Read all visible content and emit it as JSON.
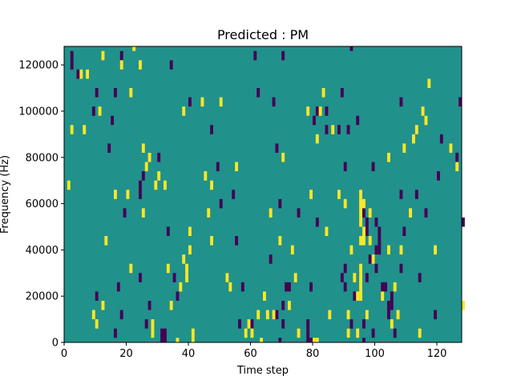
{
  "chart_data": {
    "type": "heatmap",
    "title": "Predicted : PM",
    "xlabel": "Time step",
    "ylabel": "Frequency (Hz)",
    "xlim": [
      0,
      128
    ],
    "ylim": [
      0,
      128000
    ],
    "x_ticks": [
      0,
      20,
      40,
      60,
      80,
      100,
      120
    ],
    "x_tick_labels": [
      "0",
      "20",
      "40",
      "60",
      "80",
      "100",
      "120"
    ],
    "y_ticks": [
      0,
      20000,
      40000,
      60000,
      80000,
      100000,
      120000
    ],
    "y_tick_labels": [
      "0",
      "20000",
      "40000",
      "60000",
      "80000",
      "100000",
      "120000"
    ],
    "grid": false,
    "colormap": "viridis",
    "colors": {
      "low": "#440154",
      "mid": "#21918c",
      "high": "#fde725"
    },
    "background_value": "mid",
    "bin_height_hz": 4000,
    "low_cells": [
      [
        2,
        120000
      ],
      [
        2,
        124000
      ],
      [
        4,
        116000
      ],
      [
        9,
        100000
      ],
      [
        10,
        108000
      ],
      [
        10,
        20000
      ],
      [
        14,
        84000
      ],
      [
        15,
        96000
      ],
      [
        16,
        4000
      ],
      [
        16,
        108000
      ],
      [
        17,
        24000
      ],
      [
        18,
        124000
      ],
      [
        18,
        12000
      ],
      [
        19,
        56000
      ],
      [
        24,
        28000
      ],
      [
        24,
        64000
      ],
      [
        24,
        68000
      ],
      [
        25,
        72000
      ],
      [
        26,
        8000
      ],
      [
        27,
        16000
      ],
      [
        30,
        80000
      ],
      [
        31,
        4000
      ],
      [
        31,
        0
      ],
      [
        32,
        4000
      ],
      [
        32,
        0
      ],
      [
        33,
        48000
      ],
      [
        34,
        120000
      ],
      [
        35,
        28000
      ],
      [
        36,
        20000
      ],
      [
        40,
        104000
      ],
      [
        47,
        92000
      ],
      [
        49,
        76000
      ],
      [
        50,
        60000
      ],
      [
        52,
        28000
      ],
      [
        54,
        64000
      ],
      [
        55,
        44000
      ],
      [
        56,
        8000
      ],
      [
        57,
        24000
      ],
      [
        60,
        8000
      ],
      [
        61,
        124000
      ],
      [
        62,
        108000
      ],
      [
        66,
        36000
      ],
      [
        67,
        104000
      ],
      [
        68,
        84000
      ],
      [
        68,
        12000
      ],
      [
        69,
        0
      ],
      [
        69,
        60000
      ],
      [
        70,
        124000
      ],
      [
        70,
        16000
      ],
      [
        70,
        8000
      ],
      [
        71,
        24000
      ],
      [
        72,
        24000
      ],
      [
        75,
        56000
      ],
      [
        78,
        8000
      ],
      [
        78,
        4000
      ],
      [
        78,
        0
      ],
      [
        79,
        0
      ],
      [
        79,
        24000
      ],
      [
        80,
        96000
      ],
      [
        81,
        100000
      ],
      [
        81,
        52000
      ],
      [
        84,
        100000
      ],
      [
        84,
        92000
      ],
      [
        88,
        92000
      ],
      [
        89,
        108000
      ],
      [
        89,
        28000
      ],
      [
        90,
        76000
      ],
      [
        90,
        32000
      ],
      [
        90,
        24000
      ],
      [
        91,
        92000
      ],
      [
        91,
        4000
      ],
      [
        92,
        8000
      ],
      [
        92,
        128000
      ],
      [
        93,
        20000
      ],
      [
        94,
        96000
      ],
      [
        96,
        8000
      ],
      [
        96,
        0
      ],
      [
        96,
        56000
      ],
      [
        97,
        52000
      ],
      [
        97,
        48000
      ],
      [
        97,
        28000
      ],
      [
        98,
        36000
      ],
      [
        99,
        4000
      ],
      [
        99,
        76000
      ],
      [
        100,
        40000
      ],
      [
        100,
        32000
      ],
      [
        100,
        52000
      ],
      [
        101,
        48000
      ],
      [
        101,
        44000
      ],
      [
        101,
        40000
      ],
      [
        102,
        24000
      ],
      [
        103,
        24000
      ],
      [
        104,
        12000
      ],
      [
        104,
        16000
      ],
      [
        105,
        20000
      ],
      [
        105,
        16000
      ],
      [
        106,
        4000
      ],
      [
        108,
        64000
      ],
      [
        108,
        104000
      ],
      [
        108,
        32000
      ],
      [
        109,
        48000
      ],
      [
        113,
        64000
      ],
      [
        114,
        28000
      ],
      [
        116,
        56000
      ],
      [
        119,
        12000
      ],
      [
        120,
        72000
      ],
      [
        121,
        88000
      ],
      [
        126,
        80000
      ],
      [
        127,
        104000
      ],
      [
        128,
        52000
      ]
    ],
    "high_cells": [
      [
        1,
        68000
      ],
      [
        2,
        92000
      ],
      [
        5,
        116000
      ],
      [
        6,
        92000
      ],
      [
        7,
        116000
      ],
      [
        9,
        12000
      ],
      [
        10,
        8000
      ],
      [
        11,
        100000
      ],
      [
        12,
        16000
      ],
      [
        12,
        124000
      ],
      [
        13,
        44000
      ],
      [
        16,
        64000
      ],
      [
        18,
        120000
      ],
      [
        20,
        64000
      ],
      [
        21,
        108000
      ],
      [
        21,
        32000
      ],
      [
        22,
        128000
      ],
      [
        24,
        120000
      ],
      [
        25,
        56000
      ],
      [
        25,
        84000
      ],
      [
        26,
        76000
      ],
      [
        27,
        80000
      ],
      [
        28,
        4000
      ],
      [
        28,
        8000
      ],
      [
        29,
        68000
      ],
      [
        30,
        72000
      ],
      [
        32,
        68000
      ],
      [
        33,
        32000
      ],
      [
        34,
        16000
      ],
      [
        36,
        0
      ],
      [
        37,
        24000
      ],
      [
        38,
        36000
      ],
      [
        38,
        100000
      ],
      [
        39,
        28000
      ],
      [
        39,
        32000
      ],
      [
        40,
        40000
      ],
      [
        40,
        48000
      ],
      [
        41,
        4000
      ],
      [
        41,
        0
      ],
      [
        44,
        104000
      ],
      [
        45,
        72000
      ],
      [
        46,
        56000
      ],
      [
        47,
        68000
      ],
      [
        47,
        44000
      ],
      [
        50,
        104000
      ],
      [
        52,
        28000
      ],
      [
        53,
        24000
      ],
      [
        55,
        76000
      ],
      [
        58,
        4000
      ],
      [
        59,
        8000
      ],
      [
        60,
        4000
      ],
      [
        62,
        12000
      ],
      [
        63,
        0
      ],
      [
        64,
        20000
      ],
      [
        65,
        12000
      ],
      [
        66,
        56000
      ],
      [
        67,
        12000
      ],
      [
        69,
        44000
      ],
      [
        70,
        80000
      ],
      [
        72,
        16000
      ],
      [
        73,
        40000
      ],
      [
        74,
        28000
      ],
      [
        75,
        4000
      ],
      [
        78,
        100000
      ],
      [
        79,
        64000
      ],
      [
        80,
        0
      ],
      [
        81,
        0
      ],
      [
        81,
        88000
      ],
      [
        82,
        100000
      ],
      [
        83,
        108000
      ],
      [
        84,
        48000
      ],
      [
        85,
        12000
      ],
      [
        86,
        92000
      ],
      [
        88,
        64000
      ],
      [
        90,
        60000
      ],
      [
        91,
        12000
      ],
      [
        91,
        4000
      ],
      [
        92,
        40000
      ],
      [
        93,
        28000
      ],
      [
        94,
        4000
      ],
      [
        94,
        20000
      ],
      [
        95,
        20000
      ],
      [
        95,
        24000
      ],
      [
        95,
        28000
      ],
      [
        95,
        32000
      ],
      [
        95,
        44000
      ],
      [
        95,
        52000
      ],
      [
        95,
        56000
      ],
      [
        95,
        60000
      ],
      [
        95,
        64000
      ],
      [
        96,
        44000
      ],
      [
        96,
        48000
      ],
      [
        96,
        60000
      ],
      [
        97,
        12000
      ],
      [
        98,
        44000
      ],
      [
        98,
        56000
      ],
      [
        99,
        36000
      ],
      [
        102,
        20000
      ],
      [
        104,
        40000
      ],
      [
        104,
        80000
      ],
      [
        105,
        8000
      ],
      [
        106,
        24000
      ],
      [
        107,
        12000
      ],
      [
        108,
        40000
      ],
      [
        109,
        84000
      ],
      [
        111,
        56000
      ],
      [
        112,
        88000
      ],
      [
        113,
        92000
      ],
      [
        114,
        4000
      ],
      [
        115,
        100000
      ],
      [
        116,
        96000
      ],
      [
        117,
        112000
      ],
      [
        119,
        40000
      ],
      [
        124,
        84000
      ],
      [
        126,
        76000
      ],
      [
        128,
        16000
      ]
    ]
  }
}
